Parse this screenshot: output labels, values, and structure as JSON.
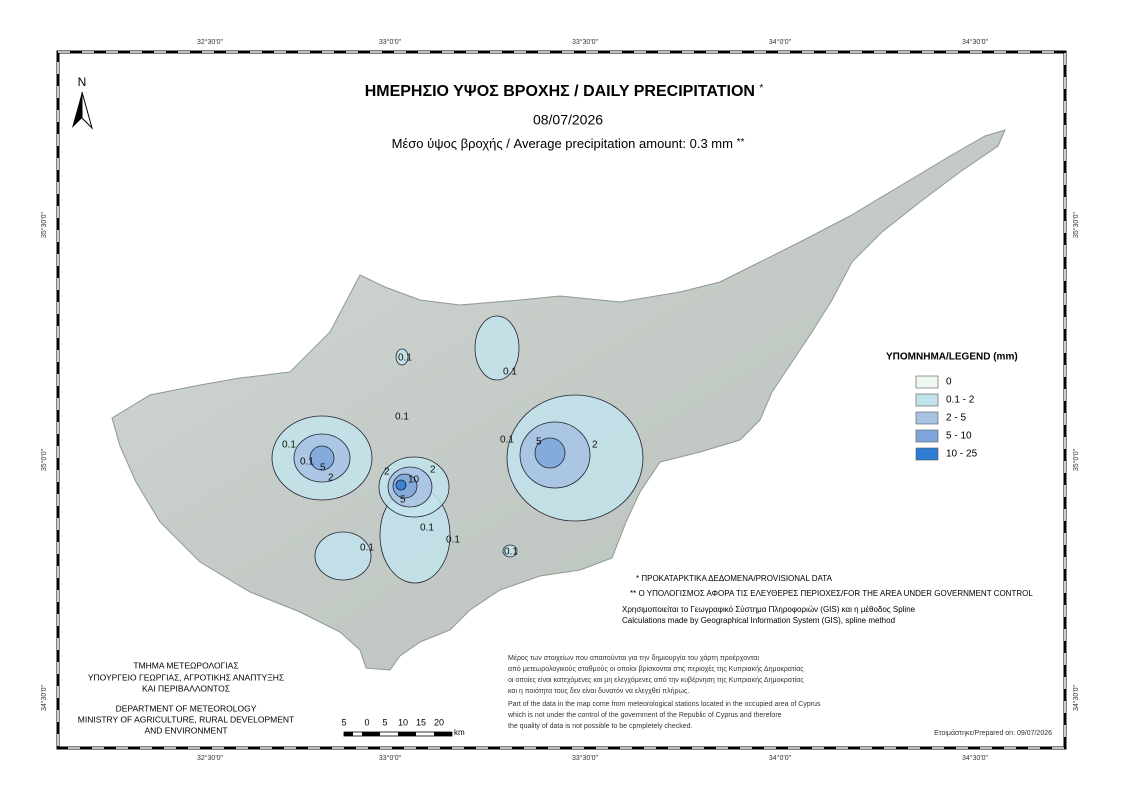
{
  "title": {
    "text": "ΗΜΕΡΗΣΙΟ ΥΨΟΣ ΒΡΟΧΗΣ / DAILY PRECIPITATION",
    "note_mark": "*"
  },
  "date": "08/07/2026",
  "average": {
    "text": "Μέσο ύψος βροχής / Average precipitation amount: 0.3 mm",
    "note_mark": "**"
  },
  "north_arrow": "N",
  "graticule": {
    "longitudes": [
      "32°30'0\"",
      "33°0'0\"",
      "33°30'0\"",
      "34°0'0\"",
      "34°30'0\""
    ],
    "latitudes": [
      "35°30'0\"",
      "35°0'0\"",
      "34°30'0\""
    ]
  },
  "legend": {
    "title": "ΥΠΟΜΝΗΜΑ/LEGEND (mm)",
    "items": [
      {
        "label": "0",
        "color": "#eef8ee"
      },
      {
        "label": "0.1 - 2",
        "color": "#c2e3ec"
      },
      {
        "label": "2 - 5",
        "color": "#a7c2e2"
      },
      {
        "label": "5 - 10",
        "color": "#7ea6dc"
      },
      {
        "label": "10 - 25",
        "color": "#2e7bd3"
      }
    ]
  },
  "map": {
    "contour_labels": [
      "0.1",
      "0.1",
      "0.1",
      "0.1",
      "2",
      "5",
      "0.1",
      "5",
      "2",
      "10",
      "2",
      "5",
      "0.1",
      "0.1",
      "0.1",
      "0.1",
      "2",
      "0.1"
    ]
  },
  "notes": [
    "* ΠΡΟΚΑΤΑΡΚΤΙΚΑ ΔΕΔΟΜΕΝΑ/PROVISIONAL DATA",
    "** Ο ΥΠΟΛΟΓΙΣΜΟΣ ΑΦΟΡΑ ΤΙΣ ΕΛΕΥΘΕΡΕΣ ΠΕΡΙΟΧΕΣ/FOR THE AREA UNDER GOVERNMENT CONTROL",
    "Χρησιμοποιείται το Γεωγραφικό Σύστημα Πληροφοριών (GIS) και η μέθοδος Spline",
    "Calculations made by Geographical Information System (GIS), spline method"
  ],
  "disclaimer_gr": [
    "Μέρος των στοιχείων που απαιτούνται για την δημιουργία του χάρτη προέρχονται",
    "από μετεωρολογικούς σταθμούς οι οποίοι βρίσκονται στις περιοχές της Κυπριακής Δημοκρατίας",
    "οι οποίες είναι κατεχόμενες και μη ελεγχόμενες από την κυβέρνηση της Κυπριακής Δημοκρατίας",
    "και η ποιότητα τους δεν είναι δυνατόν να ελεγχθεί πλήρως."
  ],
  "disclaimer_en": [
    "Part of the data in the map come from meteorological stations located in the occupied area of Cyprus",
    "which is not under the control of the government of the Republic of Cyprus and therefore",
    "the quality of data is not possible to be cpmpletely checked."
  ],
  "agency": [
    "ΤΜΗΜΑ ΜΕΤΕΩΡΟΛΟΓΙΑΣ",
    "ΥΠΟΥΡΓΕΙΟ ΓΕΩΡΓΙΑΣ, ΑΓΡΟΤΙΚΗΣ ΑΝΑΠΤΥΞΗΣ",
    "ΚΑΙ ΠΕΡΙΒΑΛΛΟΝΤΟΣ",
    "DEPARTMENT OF METEOROLOGY",
    "MINISTRY OF AGRICULTURE, RURAL DEVELOPMENT",
    "AND ENVIRONMENT"
  ],
  "scale_bar": {
    "labels": [
      "5",
      "0",
      "5",
      "10",
      "15",
      "20"
    ],
    "unit": "km"
  },
  "prepared": "Ετοιμάστηκε/Prepared on: 09/07/2026"
}
